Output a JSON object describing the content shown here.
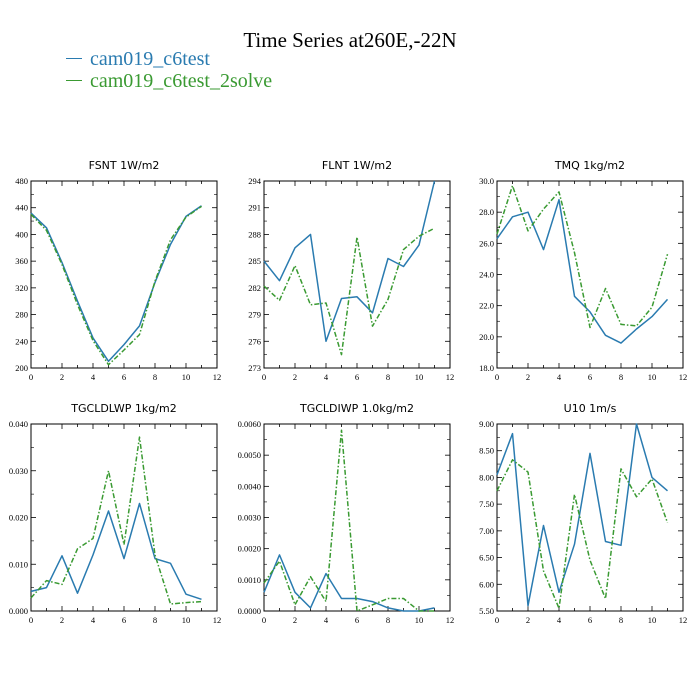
{
  "title": "Time Series at260E,-22N",
  "legend": [
    {
      "label": "cam019_c6test",
      "color": "#2a7bb0"
    },
    {
      "label": "cam019_c6test_2solve",
      "color": "#3a9a32"
    }
  ],
  "chart_data": [
    {
      "type": "line",
      "title": "FSNT   1W/m2",
      "x": [
        0,
        1,
        2,
        3,
        4,
        5,
        6,
        7,
        8,
        9,
        10,
        11
      ],
      "xlim": [
        0,
        12
      ],
      "xticks": [
        0,
        2,
        4,
        6,
        8,
        10,
        12
      ],
      "ylim": [
        200,
        480
      ],
      "yticks": [
        200,
        240,
        280,
        320,
        360,
        400,
        440,
        480
      ],
      "ytick_labels": [
        "200",
        "240",
        "280",
        "320",
        "360",
        "400",
        "440",
        "480"
      ],
      "series": [
        {
          "name": "cam019_c6test",
          "values": [
            432,
            410,
            358,
            300,
            245,
            210,
            235,
            263,
            328,
            385,
            427,
            443
          ]
        },
        {
          "name": "cam019_c6test_2solve",
          "values": [
            430,
            406,
            355,
            295,
            241,
            205,
            227,
            250,
            330,
            392,
            426,
            442
          ]
        }
      ]
    },
    {
      "type": "line",
      "title": "FLNT   1W/m2",
      "x": [
        0,
        1,
        2,
        3,
        4,
        5,
        6,
        7,
        8,
        9,
        10,
        11
      ],
      "xlim": [
        0,
        12
      ],
      "xticks": [
        0,
        2,
        4,
        6,
        8,
        10,
        12
      ],
      "ylim": [
        273,
        294
      ],
      "yticks": [
        273,
        276,
        279,
        282,
        285,
        288,
        291,
        294
      ],
      "ytick_labels": [
        "273",
        "276",
        "279",
        "282",
        "285",
        "288",
        "291",
        "294"
      ],
      "series": [
        {
          "name": "cam019_c6test",
          "values": [
            285,
            282.8,
            286.5,
            288,
            276,
            280.8,
            281,
            279.2,
            285.3,
            284.4,
            286.8,
            294
          ]
        },
        {
          "name": "cam019_c6test_2solve",
          "values": [
            282.2,
            280.6,
            284.5,
            280.1,
            280.3,
            274.5,
            287.7,
            277.7,
            280.7,
            286.3,
            287.8,
            288.7
          ]
        }
      ]
    },
    {
      "type": "line",
      "title": "TMQ   1kg/m2",
      "x": [
        0,
        1,
        2,
        3,
        4,
        5,
        6,
        7,
        8,
        9,
        10,
        11
      ],
      "xlim": [
        0,
        12
      ],
      "xticks": [
        0,
        2,
        4,
        6,
        8,
        10,
        12
      ],
      "ylim": [
        18,
        30
      ],
      "yticks": [
        18,
        20,
        22,
        24,
        26,
        28,
        30
      ],
      "ytick_labels": [
        "18.0",
        "20.0",
        "22.0",
        "24.0",
        "26.0",
        "28.0",
        "30.0"
      ],
      "series": [
        {
          "name": "cam019_c6test",
          "values": [
            26.3,
            27.7,
            28,
            25.6,
            28.8,
            22.6,
            21.6,
            20.1,
            19.6,
            20.5,
            21.3,
            22.4
          ]
        },
        {
          "name": "cam019_c6test_2solve",
          "values": [
            26.6,
            29.7,
            26.8,
            28.2,
            29.3,
            25.4,
            20.6,
            23.1,
            20.8,
            20.7,
            21.9,
            25.3
          ]
        }
      ]
    },
    {
      "type": "line",
      "title": "TGCLDLWP   1kg/m2",
      "x": [
        0,
        1,
        2,
        3,
        4,
        5,
        6,
        7,
        8,
        9,
        10,
        11
      ],
      "xlim": [
        0,
        12
      ],
      "xticks": [
        0,
        2,
        4,
        6,
        8,
        10,
        12
      ],
      "ylim": [
        0,
        0.04
      ],
      "yticks": [
        0,
        0.01,
        0.02,
        0.03,
        0.04
      ],
      "ytick_labels": [
        "0.000",
        "0.010",
        "0.020",
        "0.030",
        "0.040"
      ],
      "series": [
        {
          "name": "cam019_c6test",
          "values": [
            0.0042,
            0.005,
            0.0118,
            0.0038,
            0.012,
            0.0214,
            0.0112,
            0.023,
            0.0112,
            0.0102,
            0.0036,
            0.0025
          ]
        },
        {
          "name": "cam019_c6test_2solve",
          "values": [
            0.0028,
            0.0065,
            0.0057,
            0.0133,
            0.0155,
            0.03,
            0.0142,
            0.0372,
            0.012,
            0.0015,
            0.0018,
            0.002
          ]
        }
      ]
    },
    {
      "type": "line",
      "title": "TGCLDIWP   1.0kg/m2",
      "x": [
        0,
        1,
        2,
        3,
        4,
        5,
        6,
        7,
        8,
        9,
        10,
        11
      ],
      "xlim": [
        0,
        12
      ],
      "xticks": [
        0,
        2,
        4,
        6,
        8,
        10,
        12
      ],
      "ylim": [
        0,
        0.006
      ],
      "yticks": [
        0,
        0.001,
        0.002,
        0.003,
        0.004,
        0.005,
        0.006
      ],
      "ytick_labels": [
        "0.0000",
        "0.0010",
        "0.0020",
        "0.0030",
        "0.0040",
        "0.0050",
        "0.0060"
      ],
      "series": [
        {
          "name": "cam019_c6test",
          "values": [
            0.0006,
            0.0018,
            0.0006,
            0.0001,
            0.0012,
            0.0004,
            0.0004,
            0.0003,
            0.0001,
            0.0,
            0.0,
            0.0001
          ]
        },
        {
          "name": "cam019_c6test_2solve",
          "values": [
            0.0009,
            0.0016,
            0.0002,
            0.0011,
            0.0003,
            0.0058,
            0.0,
            0.0002,
            0.0004,
            0.0004,
            0.0,
            0.0
          ]
        }
      ]
    },
    {
      "type": "line",
      "title": "U10   1m/s",
      "x": [
        0,
        1,
        2,
        3,
        4,
        5,
        6,
        7,
        8,
        9,
        10,
        11
      ],
      "xlim": [
        0,
        12
      ],
      "xticks": [
        0,
        2,
        4,
        6,
        8,
        10,
        12
      ],
      "ylim": [
        5.5,
        9
      ],
      "yticks": [
        5.5,
        6,
        6.5,
        7,
        7.5,
        8,
        8.5,
        9
      ],
      "ytick_labels": [
        "5.50",
        "6.00",
        "6.50",
        "7.00",
        "7.50",
        "8.00",
        "8.50",
        "9.00"
      ],
      "series": [
        {
          "name": "cam019_c6test",
          "values": [
            8.05,
            8.82,
            5.6,
            7.1,
            5.85,
            6.75,
            8.45,
            6.8,
            6.73,
            9,
            8.0,
            7.75
          ]
        },
        {
          "name": "cam019_c6test_2solve",
          "values": [
            7.75,
            8.33,
            8.1,
            6.25,
            5.55,
            7.68,
            6.45,
            5.73,
            8.16,
            7.64,
            7.97,
            7.15
          ]
        }
      ]
    }
  ]
}
